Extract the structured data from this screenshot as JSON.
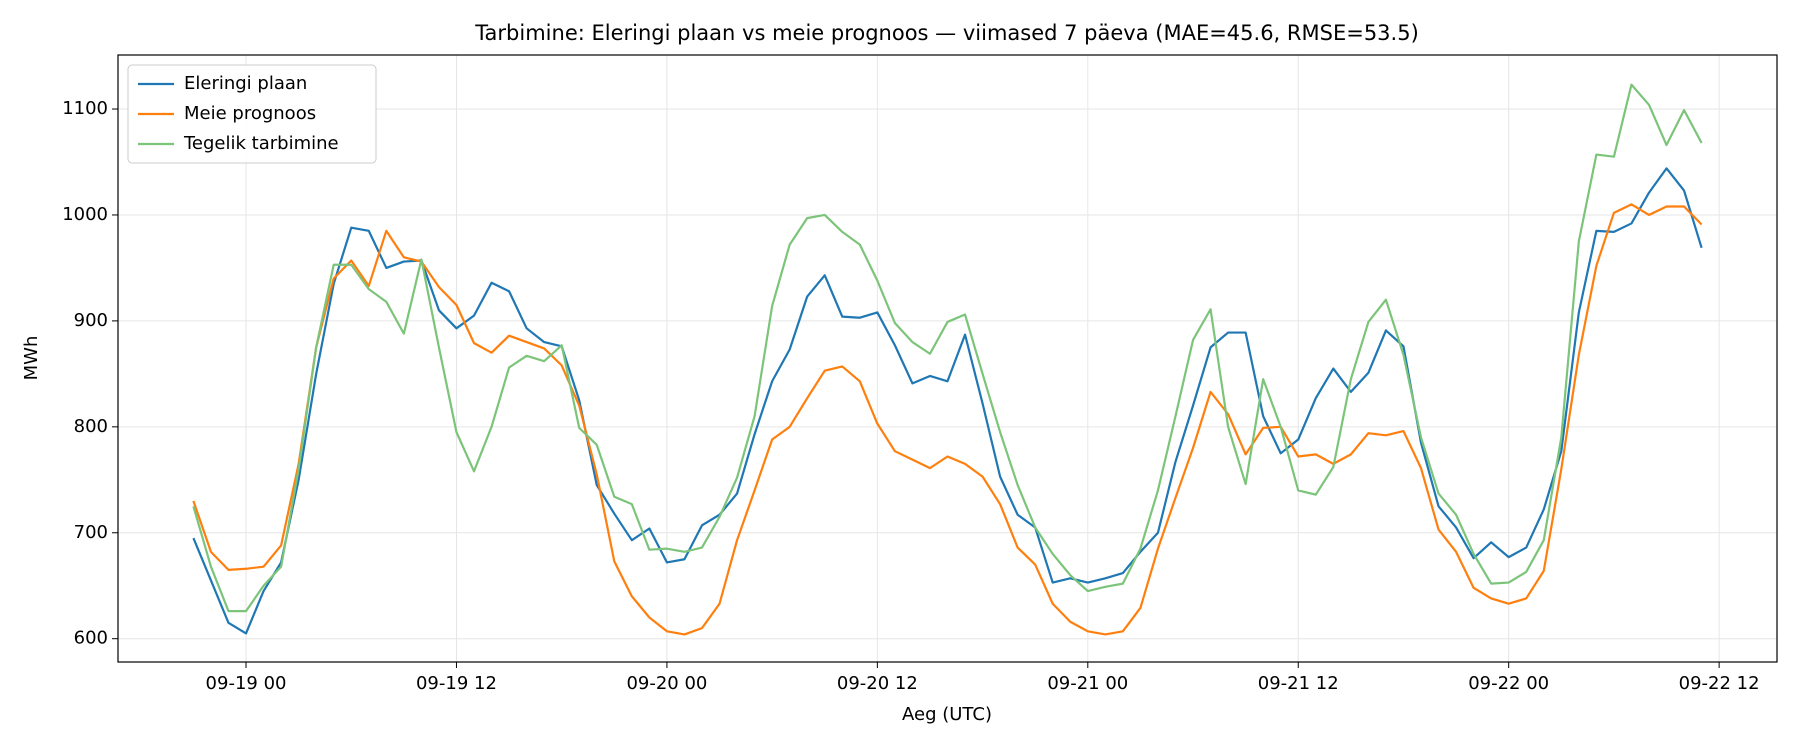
{
  "chart_data": {
    "type": "line",
    "title": "Tarbimine: Eleringi plaan vs meie prognoos — viimased 7 päeva (MAE=45.6, RMSE=53.5)",
    "xlabel": "Aeg (UTC)",
    "ylabel": "MWh",
    "x": [
      "09-18 21",
      "09-18 22",
      "09-18 23",
      "09-19 00",
      "09-19 01",
      "09-19 02",
      "09-19 03",
      "09-19 04",
      "09-19 05",
      "09-19 06",
      "09-19 07",
      "09-19 08",
      "09-19 09",
      "09-19 10",
      "09-19 11",
      "09-19 12",
      "09-19 13",
      "09-19 14",
      "09-19 15",
      "09-19 16",
      "09-19 17",
      "09-19 18",
      "09-19 19",
      "09-19 20",
      "09-19 21",
      "09-19 22",
      "09-19 23",
      "09-20 00",
      "09-20 01",
      "09-20 02",
      "09-20 03",
      "09-20 04",
      "09-20 05",
      "09-20 06",
      "09-20 07",
      "09-20 08",
      "09-20 09",
      "09-20 10",
      "09-20 11",
      "09-20 12",
      "09-20 13",
      "09-20 14",
      "09-20 15",
      "09-20 16",
      "09-20 17",
      "09-20 18",
      "09-20 19",
      "09-20 20",
      "09-20 21",
      "09-20 22",
      "09-20 23",
      "09-21 00",
      "09-21 01",
      "09-21 02",
      "09-21 03",
      "09-21 04",
      "09-21 05",
      "09-21 06",
      "09-21 07",
      "09-21 08",
      "09-21 09",
      "09-21 10",
      "09-21 11",
      "09-21 12",
      "09-21 13",
      "09-21 14",
      "09-21 15",
      "09-21 16",
      "09-21 17",
      "09-21 18",
      "09-21 19",
      "09-21 20",
      "09-21 21",
      "09-21 22",
      "09-21 23",
      "09-22 00",
      "09-22 01",
      "09-22 02",
      "09-22 03",
      "09-22 04",
      "09-22 05",
      "09-22 06",
      "09-22 07",
      "09-22 08",
      "09-22 09",
      "09-22 10",
      "09-22 11"
    ],
    "series": [
      {
        "name": "Eleringi plaan",
        "color": "#1f77b4",
        "values": [
          695,
          655,
          615,
          605,
          645,
          672,
          750,
          850,
          935,
          988,
          985,
          950,
          956,
          957,
          910,
          893,
          905,
          936,
          928,
          893,
          880,
          876,
          825,
          745,
          718,
          693,
          704,
          672,
          675,
          707,
          717,
          737,
          793,
          843,
          873,
          923,
          943,
          904,
          903,
          908,
          877,
          841,
          848,
          843,
          887,
          822,
          753,
          717,
          705,
          653,
          657,
          653,
          657,
          662,
          682,
          700,
          767,
          820,
          875,
          889,
          889,
          810,
          775,
          788,
          827,
          855,
          833,
          851,
          891,
          876,
          785,
          725,
          705,
          676,
          691,
          677,
          686,
          722,
          777,
          908,
          985,
          984,
          992,
          1021,
          1044,
          1023,
          969
        ]
      },
      {
        "name": "Meie prognoos",
        "color": "#ff7f0e",
        "values": [
          730,
          682,
          665,
          666,
          668,
          688,
          765,
          875,
          940,
          957,
          933,
          985,
          960,
          956,
          932,
          915,
          879,
          870,
          886,
          880,
          874,
          858,
          820,
          755,
          673,
          640,
          620,
          607,
          604,
          610,
          633,
          693,
          740,
          788,
          800,
          827,
          853,
          857,
          843,
          803,
          777,
          769,
          761,
          772,
          765,
          753,
          727,
          686,
          670,
          633,
          616,
          607,
          604,
          607,
          629,
          685,
          733,
          780,
          833,
          812,
          774,
          799,
          800,
          772,
          774,
          765,
          774,
          794,
          792,
          796,
          761,
          703,
          682,
          648,
          638,
          633,
          638,
          664,
          760,
          868,
          952,
          1002,
          1010,
          1000,
          1008,
          1008,
          991
        ]
      },
      {
        "name": "Tegelik tarbimine",
        "color": "#7cc47a",
        "values": [
          725,
          668,
          626,
          626,
          650,
          668,
          760,
          875,
          953,
          953,
          930,
          918,
          888,
          958,
          875,
          795,
          758,
          800,
          856,
          867,
          862,
          877,
          799,
          783,
          734,
          727,
          684,
          685,
          682,
          686,
          715,
          752,
          810,
          914,
          972,
          997,
          1000,
          984,
          972,
          938,
          898,
          880,
          869,
          899,
          906,
          850,
          795,
          745,
          705,
          680,
          660,
          645,
          649,
          652,
          685,
          740,
          810,
          882,
          911,
          800,
          746,
          845,
          800,
          740,
          736,
          762,
          845,
          899,
          920,
          868,
          790,
          737,
          717,
          680,
          652,
          653,
          663,
          693,
          790,
          975,
          1057,
          1055,
          1123,
          1104,
          1066,
          1099,
          1068
        ]
      }
    ],
    "xlim": [
      "09-18 16:42",
      "09-22 15:18"
    ],
    "xticks": [
      "09-19 00",
      "09-19 12",
      "09-20 00",
      "09-20 12",
      "09-21 00",
      "09-21 12",
      "09-22 00",
      "09-22 12"
    ],
    "ylim": [
      578,
      1151
    ],
    "yticks": [
      600,
      700,
      800,
      900,
      1000,
      1100
    ],
    "grid": true,
    "legend": "upper left"
  }
}
